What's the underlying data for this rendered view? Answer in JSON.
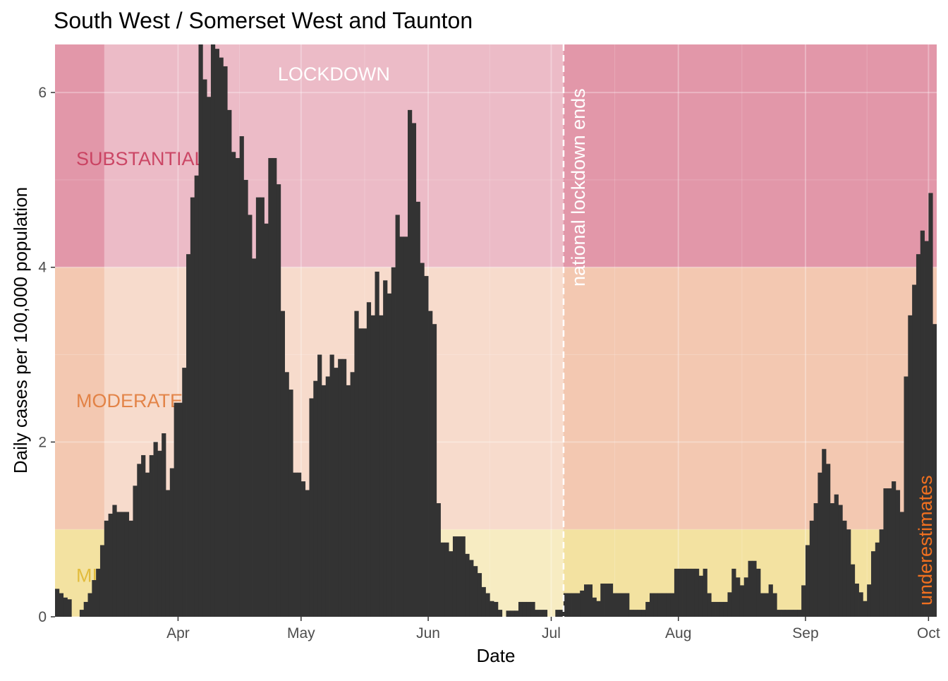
{
  "chart_data": {
    "type": "bar",
    "title": "South West / Somerset West and Taunton",
    "xlabel": "Date",
    "ylabel": "Daily cases per 100,000 population",
    "x_start_date": "2020-03-02",
    "x_range": [
      "2020-03-02",
      "2020-10-03"
    ],
    "ylim": [
      0,
      6.55
    ],
    "grid": true,
    "x_ticks": [
      {
        "label": "Apr",
        "date": "2020-04-01"
      },
      {
        "label": "May",
        "date": "2020-05-01"
      },
      {
        "label": "Jun",
        "date": "2020-06-01"
      },
      {
        "label": "Jul",
        "date": "2020-07-01"
      },
      {
        "label": "Aug",
        "date": "2020-08-01"
      },
      {
        "label": "Sep",
        "date": "2020-09-01"
      },
      {
        "label": "Oct",
        "date": "2020-10-01"
      }
    ],
    "y_ticks": [
      0,
      2,
      4,
      6
    ],
    "bands": [
      {
        "label": "MINOR",
        "from": 0,
        "to": 1,
        "color": "#e8c84a"
      },
      {
        "label": "MODERATE",
        "from": 1,
        "to": 4,
        "color": "#e8956a"
      },
      {
        "label": "SUBSTANTIAL",
        "from": 4,
        "to": 6.55,
        "color": "#c8385a"
      }
    ],
    "lockdown": {
      "label": "LOCKDOWN",
      "from": "2020-03-14",
      "to": "2020-07-04"
    },
    "annotations": {
      "lockdown_end_label": "national lockdown ends",
      "lockdown_end_date": "2020-07-04",
      "underestimates_label": "underestimates"
    },
    "values": [
      0.32,
      0.27,
      0.22,
      0.2,
      0.0,
      0.0,
      0.08,
      0.17,
      0.27,
      0.42,
      0.55,
      0.82,
      1.1,
      1.18,
      1.28,
      1.2,
      1.2,
      1.2,
      1.1,
      1.5,
      1.75,
      1.85,
      1.65,
      1.85,
      2.0,
      1.9,
      2.1,
      1.45,
      1.7,
      2.45,
      2.45,
      2.85,
      4.15,
      4.8,
      5.05,
      6.55,
      6.15,
      5.95,
      6.55,
      6.5,
      6.4,
      6.3,
      5.8,
      5.32,
      5.25,
      5.5,
      5.0,
      4.6,
      4.1,
      4.8,
      4.8,
      4.5,
      5.25,
      5.25,
      4.95,
      3.5,
      2.8,
      2.6,
      1.65,
      1.65,
      1.55,
      1.45,
      2.5,
      2.7,
      3.0,
      2.65,
      2.75,
      3.0,
      2.85,
      2.95,
      2.95,
      2.65,
      2.8,
      3.5,
      3.3,
      3.3,
      3.6,
      3.45,
      3.95,
      3.45,
      3.85,
      3.7,
      4.0,
      4.6,
      4.35,
      4.35,
      5.8,
      5.65,
      4.75,
      4.05,
      3.9,
      3.5,
      3.35,
      1.3,
      0.85,
      0.85,
      0.75,
      0.92,
      0.92,
      0.92,
      0.72,
      0.65,
      0.58,
      0.5,
      0.34,
      0.27,
      0.18,
      0.17,
      0.08,
      0.0,
      0.07,
      0.07,
      0.07,
      0.17,
      0.17,
      0.17,
      0.17,
      0.08,
      0.08,
      0.08,
      0.0,
      0.0,
      0.08,
      0.08,
      0.27,
      0.27,
      0.27,
      0.27,
      0.3,
      0.37,
      0.37,
      0.22,
      0.18,
      0.38,
      0.38,
      0.38,
      0.27,
      0.27,
      0.27,
      0.27,
      0.08,
      0.08,
      0.08,
      0.08,
      0.17,
      0.27,
      0.27,
      0.27,
      0.27,
      0.27,
      0.27,
      0.55,
      0.55,
      0.55,
      0.55,
      0.55,
      0.55,
      0.47,
      0.55,
      0.27,
      0.17,
      0.17,
      0.17,
      0.17,
      0.28,
      0.55,
      0.45,
      0.36,
      0.45,
      0.64,
      0.64,
      0.55,
      0.27,
      0.27,
      0.37,
      0.27,
      0.08,
      0.08,
      0.08,
      0.08,
      0.08,
      0.08,
      0.36,
      0.82,
      1.1,
      1.3,
      1.65,
      1.92,
      1.75,
      1.3,
      1.4,
      1.28,
      1.1,
      1.0,
      0.6,
      0.38,
      0.28,
      0.18,
      0.37,
      0.75,
      0.85,
      1.0,
      1.47,
      1.47,
      1.55,
      1.45,
      1.2,
      2.75,
      3.45,
      3.8,
      4.15,
      4.42,
      4.3,
      4.85,
      3.35,
      2.9
    ],
    "colors": {
      "bar": "#333333",
      "panel_bg": "#ebebeb",
      "lockdown_band": "rgba(255,255,255,0.35)",
      "minor_label": "#e0b832",
      "moderate_label": "#e07a3a",
      "substantial_label": "#c83a5a",
      "lockdown_label": "#ffffff",
      "underestimates_label": "#f07020"
    }
  }
}
